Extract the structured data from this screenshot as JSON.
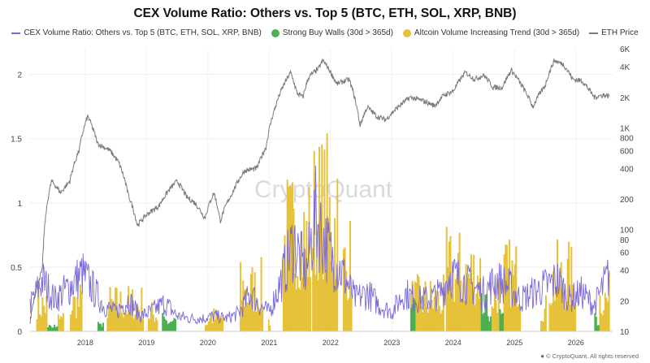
{
  "title": "CEX Volume Ratio: Others vs. Top 5 (BTC, ETH, SOL, XRP, BNB)",
  "legend": {
    "ratio": "CEX Volume Ratio: Others vs. Top 5 (BTC, ETH, SOL, XRP, BNB)",
    "buy_walls": "Strong Buy Walls (30d > 365d)",
    "altcoin": "Altcoin Volume Increasing Trend (30d > 365d)",
    "eth": "ETH Price"
  },
  "watermark": "CryptoQuant",
  "footer": "© CryptoQuant. All rights reserved",
  "colors": {
    "ratio": "#7b68d9",
    "buy_walls": "#4caf50",
    "altcoin": "#e6c13a",
    "eth": "#7a7a7a"
  },
  "chart_data": {
    "type": "line",
    "x_ticks": [
      "2018",
      "2019",
      "2020",
      "2021",
      "2022",
      "2023",
      "2024",
      "2025",
      "2026"
    ],
    "x_range": [
      2017.1,
      2026.6
    ],
    "y_left": {
      "ticks": [
        "0",
        "0.5",
        "1",
        "1.5",
        "2"
      ],
      "range": [
        0,
        2.2
      ]
    },
    "y_right": {
      "scale": "log",
      "range": [
        10,
        6000
      ],
      "ticks": [
        {
          "v": 6000,
          "label": "6K"
        },
        {
          "v": 4000,
          "label": "4K"
        },
        {
          "v": 2000,
          "label": "2K"
        },
        {
          "v": 1000,
          "label": "1K"
        },
        {
          "v": 800,
          "label": "800"
        },
        {
          "v": 600,
          "label": "600"
        },
        {
          "v": 400,
          "label": "400"
        },
        {
          "v": 200,
          "label": "200"
        },
        {
          "v": 100,
          "label": "100"
        },
        {
          "v": 80,
          "label": "80"
        },
        {
          "v": 60,
          "label": "60"
        },
        {
          "v": 40,
          "label": "40"
        },
        {
          "v": 20,
          "label": "20"
        },
        {
          "v": 10,
          "label": "10"
        }
      ]
    },
    "series": [
      {
        "name": "ETH Price",
        "axis": "right",
        "points": [
          [
            2017.1,
            12
          ],
          [
            2017.3,
            40
          ],
          [
            2017.45,
            300
          ],
          [
            2017.6,
            230
          ],
          [
            2017.75,
            300
          ],
          [
            2017.9,
            600
          ],
          [
            2018.04,
            1300
          ],
          [
            2018.2,
            700
          ],
          [
            2018.4,
            600
          ],
          [
            2018.55,
            450
          ],
          [
            2018.7,
            220
          ],
          [
            2018.85,
            110
          ],
          [
            2019.0,
            140
          ],
          [
            2019.2,
            170
          ],
          [
            2019.4,
            260
          ],
          [
            2019.5,
            300
          ],
          [
            2019.65,
            210
          ],
          [
            2019.8,
            180
          ],
          [
            2019.95,
            130
          ],
          [
            2020.1,
            230
          ],
          [
            2020.2,
            120
          ],
          [
            2020.4,
            230
          ],
          [
            2020.6,
            380
          ],
          [
            2020.8,
            400
          ],
          [
            2020.95,
            650
          ],
          [
            2021.1,
            1600
          ],
          [
            2021.35,
            3500
          ],
          [
            2021.45,
            2200
          ],
          [
            2021.55,
            2000
          ],
          [
            2021.65,
            3200
          ],
          [
            2021.8,
            3800
          ],
          [
            2021.88,
            4600
          ],
          [
            2021.98,
            3700
          ],
          [
            2022.1,
            2700
          ],
          [
            2022.3,
            3000
          ],
          [
            2022.4,
            1900
          ],
          [
            2022.48,
            1050
          ],
          [
            2022.6,
            1600
          ],
          [
            2022.75,
            1300
          ],
          [
            2022.9,
            1200
          ],
          [
            2023.1,
            1600
          ],
          [
            2023.3,
            2000
          ],
          [
            2023.5,
            1850
          ],
          [
            2023.7,
            1650
          ],
          [
            2023.85,
            2100
          ],
          [
            2024.0,
            2300
          ],
          [
            2024.2,
            3500
          ],
          [
            2024.35,
            3000
          ],
          [
            2024.5,
            3300
          ],
          [
            2024.65,
            2500
          ],
          [
            2024.8,
            2500
          ],
          [
            2024.95,
            3700
          ],
          [
            2025.1,
            2700
          ],
          [
            2025.3,
            1600
          ],
          [
            2025.5,
            2600
          ],
          [
            2025.65,
            4600
          ],
          [
            2025.8,
            4200
          ],
          [
            2025.95,
            3000
          ],
          [
            2026.1,
            2900
          ],
          [
            2026.3,
            2000
          ],
          [
            2026.45,
            2100
          ],
          [
            2026.55,
            2050
          ]
        ]
      },
      {
        "name": "CEX Volume Ratio: Others vs. Top 5 (BTC, ETH, SOL, XRP, BNB)",
        "axis": "left",
        "points": [
          [
            2017.1,
            0.2
          ],
          [
            2017.3,
            0.4
          ],
          [
            2017.5,
            0.25
          ],
          [
            2017.75,
            0.35
          ],
          [
            2017.95,
            0.45
          ],
          [
            2018.1,
            0.35
          ],
          [
            2018.3,
            0.2
          ],
          [
            2018.5,
            0.15
          ],
          [
            2018.7,
            0.25
          ],
          [
            2018.9,
            0.12
          ],
          [
            2019.05,
            0.15
          ],
          [
            2019.3,
            0.22
          ],
          [
            2019.5,
            0.12
          ],
          [
            2019.7,
            0.1
          ],
          [
            2019.9,
            0.1
          ],
          [
            2020.1,
            0.12
          ],
          [
            2020.3,
            0.1
          ],
          [
            2020.5,
            0.14
          ],
          [
            2020.7,
            0.3
          ],
          [
            2020.85,
            0.2
          ],
          [
            2021.0,
            0.15
          ],
          [
            2021.2,
            0.4
          ],
          [
            2021.4,
            0.7
          ],
          [
            2021.6,
            0.45
          ],
          [
            2021.75,
            0.9
          ],
          [
            2021.9,
            0.7
          ],
          [
            2022.05,
            0.55
          ],
          [
            2022.2,
            0.45
          ],
          [
            2022.4,
            0.25
          ],
          [
            2022.6,
            0.3
          ],
          [
            2022.8,
            0.2
          ],
          [
            2023.0,
            0.15
          ],
          [
            2023.2,
            0.3
          ],
          [
            2023.4,
            0.25
          ],
          [
            2023.6,
            0.25
          ],
          [
            2023.8,
            0.3
          ],
          [
            2023.95,
            0.45
          ],
          [
            2024.1,
            0.4
          ],
          [
            2024.3,
            0.35
          ],
          [
            2024.5,
            0.3
          ],
          [
            2024.7,
            0.4
          ],
          [
            2024.9,
            0.35
          ],
          [
            2025.1,
            0.25
          ],
          [
            2025.3,
            0.3
          ],
          [
            2025.5,
            0.35
          ],
          [
            2025.7,
            0.4
          ],
          [
            2025.9,
            0.25
          ],
          [
            2026.1,
            0.3
          ],
          [
            2026.3,
            0.2
          ],
          [
            2026.45,
            0.35
          ],
          [
            2026.55,
            0.45
          ]
        ]
      }
    ],
    "altcoin_periods": [
      {
        "range": [
          2017.2,
          2017.38
        ],
        "peak": 0.38
      },
      {
        "range": [
          2017.55,
          2017.65
        ],
        "peak": 0.18
      },
      {
        "range": [
          2017.75,
          2017.95
        ],
        "peak": 0.4
      },
      {
        "range": [
          2018.35,
          2018.95
        ],
        "peak": 0.38
      },
      {
        "range": [
          2019.02,
          2019.18
        ],
        "peak": 0.25
      },
      {
        "range": [
          2019.95,
          2020.0
        ],
        "peak": 0.12
      },
      {
        "range": [
          2020.0,
          2020.25
        ],
        "peak": 0.2
      },
      {
        "range": [
          2020.52,
          2020.9
        ],
        "peak": 0.58
      },
      {
        "range": [
          2020.98,
          2021.02
        ],
        "peak": 0.15
      },
      {
        "range": [
          2021.22,
          2021.68
        ],
        "peak": 1.3
      },
      {
        "range": [
          2021.7,
          2022.12
        ],
        "peak": 1.6
      },
      {
        "range": [
          2022.2,
          2022.35
        ],
        "peak": 0.95
      },
      {
        "range": [
          2023.3,
          2023.85
        ],
        "peak": 0.45
      },
      {
        "range": [
          2023.88,
          2024.45
        ],
        "peak": 0.82
      },
      {
        "range": [
          2024.62,
          2024.75
        ],
        "peak": 0.55
      },
      {
        "range": [
          2024.82,
          2025.1
        ],
        "peak": 0.75
      },
      {
        "range": [
          2025.42,
          2025.52
        ],
        "peak": 0.3
      },
      {
        "range": [
          2025.56,
          2026.0
        ],
        "peak": 0.72
      },
      {
        "range": [
          2026.38,
          2026.55
        ],
        "peak": 0.48
      }
    ],
    "buy_wall_periods": [
      {
        "range": [
          2017.38,
          2017.55
        ],
        "peak": 0.12
      },
      {
        "range": [
          2018.2,
          2018.3
        ],
        "peak": 0.08
      },
      {
        "range": [
          2019.25,
          2019.48
        ],
        "peak": 0.15
      },
      {
        "range": [
          2023.3,
          2023.38
        ],
        "peak": 0.3
      },
      {
        "range": [
          2024.45,
          2024.62
        ],
        "peak": 0.3
      },
      {
        "range": [
          2024.75,
          2024.82
        ],
        "peak": 0.2
      },
      {
        "range": [
          2026.3,
          2026.38
        ],
        "peak": 0.15
      }
    ]
  }
}
